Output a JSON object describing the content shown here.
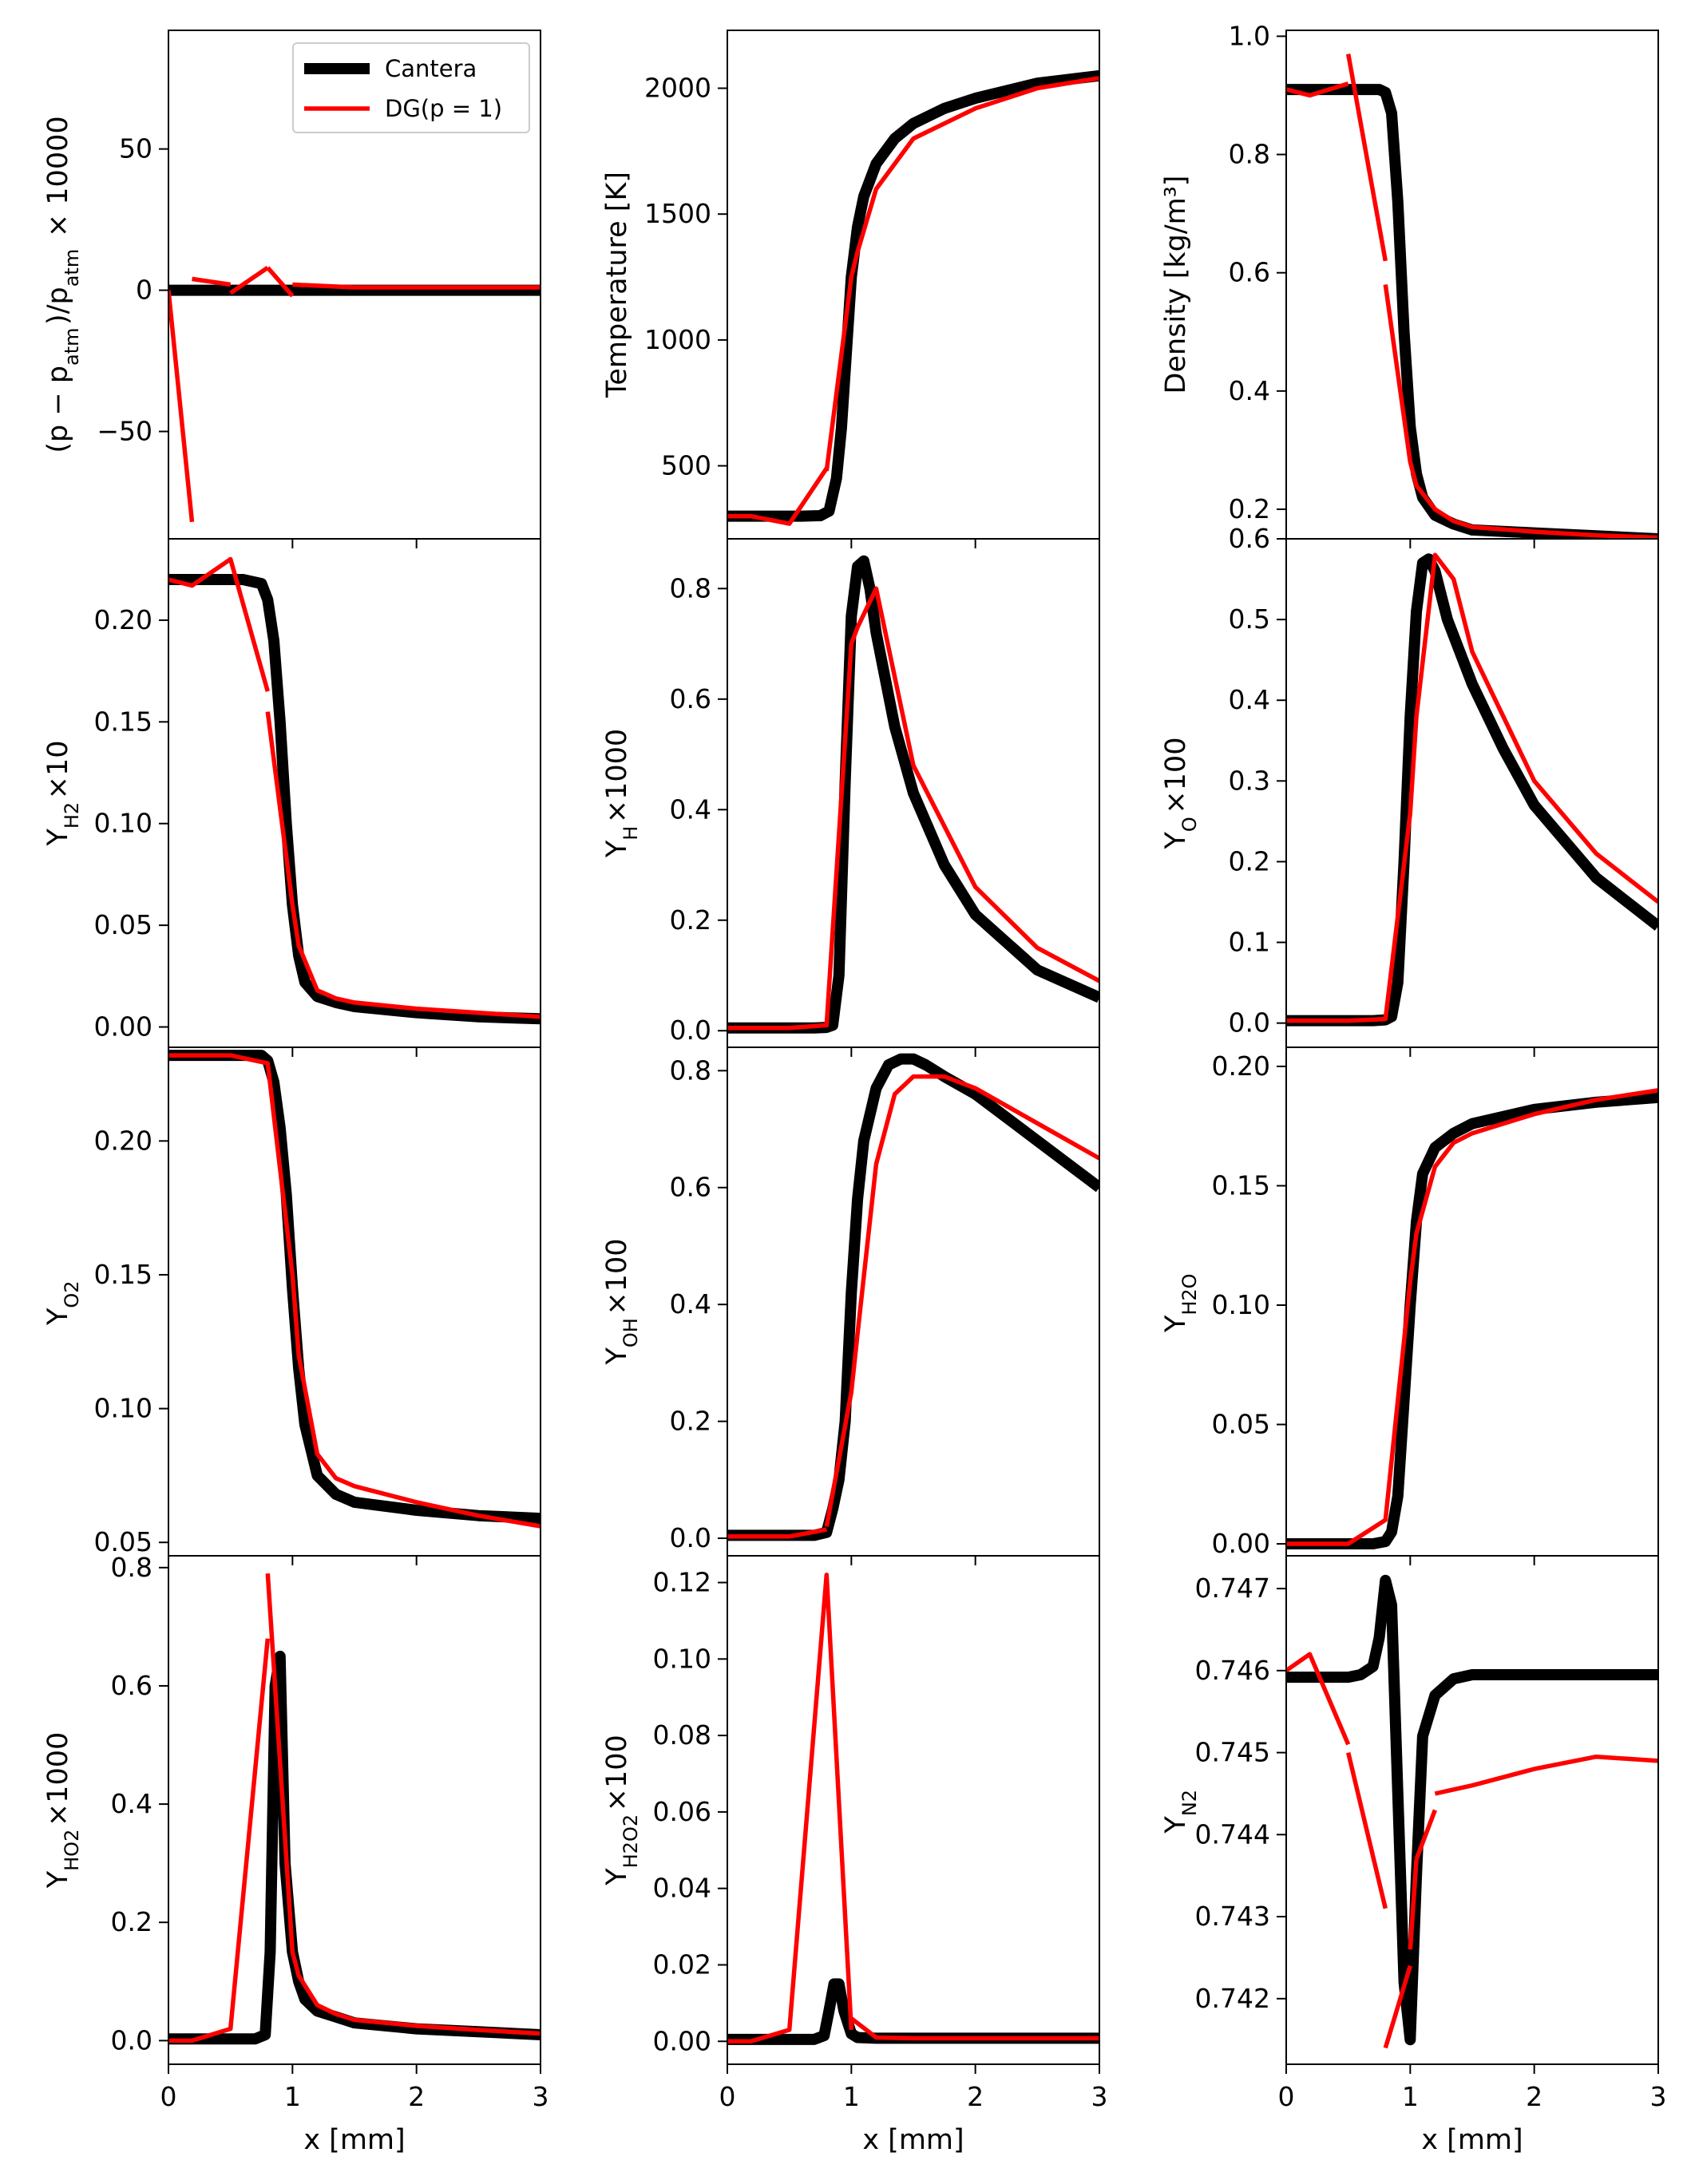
{
  "legend": {
    "cantera_label": "Cantera",
    "dg_label": "DG(p = 1)"
  },
  "colors": {
    "cantera": "#000000",
    "dg": "#ff0000"
  },
  "chart_data": [
    {
      "type": "line",
      "panel": "pressure",
      "ylabel": "(p − p_atm)/p_atm × 10000",
      "xlim": [
        0,
        3
      ],
      "ylim": [
        -88,
        92
      ],
      "yticks": [
        -50,
        0,
        50
      ],
      "xticks": [
        0,
        1,
        2,
        3
      ],
      "xlabel": "",
      "legend": "top-right",
      "series": [
        {
          "name": "Cantera",
          "x": [
            0,
            3
          ],
          "y": [
            0,
            0
          ]
        },
        {
          "name": "DG(p = 1)",
          "x": [
            0,
            0.19,
            null,
            0.19,
            0.5,
            null,
            0.5,
            0.8,
            null,
            0.8,
            1.0,
            null,
            1.0,
            1.5,
            3
          ],
          "y": [
            0,
            -82,
            null,
            4,
            2,
            null,
            -1,
            8,
            null,
            8,
            -2,
            null,
            2,
            1,
            1
          ]
        }
      ]
    },
    {
      "type": "line",
      "panel": "temperature",
      "ylabel": "Temperature [K]",
      "xlim": [
        0,
        3
      ],
      "ylim": [
        210,
        2230
      ],
      "yticks": [
        500,
        1000,
        1500,
        2000
      ],
      "xticks": [
        0,
        1,
        2,
        3
      ],
      "xlabel": "",
      "series": [
        {
          "name": "Cantera",
          "x": [
            0,
            0.6,
            0.75,
            0.82,
            0.88,
            0.92,
            0.96,
            1.0,
            1.05,
            1.1,
            1.2,
            1.35,
            1.5,
            1.75,
            2.0,
            2.5,
            3.0
          ],
          "y": [
            300,
            300,
            302,
            320,
            450,
            650,
            950,
            1250,
            1450,
            1570,
            1700,
            1800,
            1860,
            1920,
            1960,
            2020,
            2050
          ]
        },
        {
          "name": "DG(p = 1)",
          "x": [
            0,
            0.19,
            0.5,
            0.8,
            null,
            0.8,
            1.0,
            1.05,
            1.2,
            1.5,
            2.0,
            2.5,
            3.0
          ],
          "y": [
            300,
            300,
            270,
            490,
            null,
            480,
            1250,
            1350,
            1600,
            1800,
            1920,
            2000,
            2040
          ]
        }
      ]
    },
    {
      "type": "line",
      "panel": "density",
      "ylabel": "Density [kg/m³]",
      "xlim": [
        0,
        3
      ],
      "ylim": [
        0.15,
        1.01
      ],
      "yticks": [
        0.2,
        0.4,
        0.6,
        0.8,
        1.0
      ],
      "xticks": [
        0,
        1,
        2,
        3
      ],
      "xlabel": "",
      "series": [
        {
          "name": "Cantera",
          "x": [
            0,
            0.6,
            0.75,
            0.8,
            0.85,
            0.9,
            0.95,
            1.0,
            1.05,
            1.1,
            1.2,
            1.35,
            1.5,
            2.0,
            2.5,
            3.0
          ],
          "y": [
            0.91,
            0.91,
            0.91,
            0.905,
            0.87,
            0.72,
            0.5,
            0.34,
            0.26,
            0.22,
            0.19,
            0.175,
            0.165,
            0.16,
            0.155,
            0.15
          ]
        },
        {
          "name": "DG(p = 1)",
          "x": [
            0,
            0.19,
            0.5,
            null,
            0.5,
            0.8,
            null,
            0.8,
            1.0,
            1.05,
            1.2,
            1.35,
            1.5,
            2.0,
            2.5,
            3.0
          ],
          "y": [
            0.91,
            0.9,
            0.92,
            null,
            0.97,
            0.62,
            null,
            0.58,
            0.28,
            0.24,
            0.2,
            0.18,
            0.17,
            0.162,
            0.156,
            0.152
          ]
        }
      ]
    },
    {
      "type": "line",
      "panel": "yh2",
      "ylabel": "Y_H2×10",
      "xlim": [
        0,
        3
      ],
      "ylim": [
        -0.01,
        0.24
      ],
      "yticks": [
        0.0,
        0.05,
        0.1,
        0.15,
        0.2
      ],
      "xticks": [
        0,
        1,
        2,
        3
      ],
      "xlabel": "",
      "series": [
        {
          "name": "Cantera",
          "x": [
            0,
            0.6,
            0.75,
            0.8,
            0.85,
            0.9,
            0.95,
            1.0,
            1.05,
            1.1,
            1.2,
            1.35,
            1.5,
            2.0,
            2.5,
            3.0
          ],
          "y": [
            0.22,
            0.22,
            0.218,
            0.21,
            0.19,
            0.15,
            0.1,
            0.06,
            0.035,
            0.022,
            0.015,
            0.012,
            0.01,
            0.007,
            0.005,
            0.004
          ]
        },
        {
          "name": "DG(p = 1)",
          "x": [
            0,
            0.19,
            0.5,
            0.8,
            null,
            0.8,
            1.0,
            1.05,
            1.2,
            1.35,
            1.5,
            2.0,
            2.5,
            3.0
          ],
          "y": [
            0.22,
            0.217,
            0.23,
            0.165,
            null,
            0.155,
            0.06,
            0.04,
            0.018,
            0.014,
            0.012,
            0.009,
            0.007,
            0.005
          ]
        }
      ]
    },
    {
      "type": "line",
      "panel": "yh",
      "ylabel": "Y_H×1000",
      "xlim": [
        0,
        3
      ],
      "ylim": [
        -0.03,
        0.89
      ],
      "yticks": [
        0.0,
        0.2,
        0.4,
        0.6,
        0.8
      ],
      "xticks": [
        0,
        1,
        2,
        3
      ],
      "xlabel": "",
      "series": [
        {
          "name": "Cantera",
          "x": [
            0,
            0.7,
            0.8,
            0.85,
            0.9,
            0.95,
            1.0,
            1.05,
            1.1,
            1.15,
            1.2,
            1.35,
            1.5,
            1.75,
            2.0,
            2.5,
            3.0
          ],
          "y": [
            0.005,
            0.005,
            0.006,
            0.01,
            0.1,
            0.45,
            0.75,
            0.84,
            0.85,
            0.8,
            0.72,
            0.55,
            0.43,
            0.3,
            0.21,
            0.11,
            0.06
          ]
        },
        {
          "name": "DG(p = 1)",
          "x": [
            0,
            0.5,
            0.8,
            1.0,
            1.05,
            1.2,
            1.5,
            2.0,
            2.5,
            3.0
          ],
          "y": [
            0.005,
            0.005,
            0.01,
            0.7,
            0.73,
            0.8,
            0.48,
            0.26,
            0.15,
            0.09
          ]
        }
      ]
    },
    {
      "type": "line",
      "panel": "yo",
      "ylabel": "Y_O×100",
      "xlim": [
        0,
        3
      ],
      "ylim": [
        -0.03,
        0.6
      ],
      "yticks": [
        0.0,
        0.1,
        0.2,
        0.3,
        0.4,
        0.5,
        0.6
      ],
      "xticks": [
        0,
        1,
        2,
        3
      ],
      "xlabel": "",
      "series": [
        {
          "name": "Cantera",
          "x": [
            0,
            0.7,
            0.8,
            0.85,
            0.9,
            0.95,
            1.0,
            1.05,
            1.1,
            1.15,
            1.2,
            1.3,
            1.5,
            1.75,
            2.0,
            2.5,
            3.0
          ],
          "y": [
            0.003,
            0.003,
            0.004,
            0.008,
            0.05,
            0.2,
            0.38,
            0.51,
            0.57,
            0.575,
            0.56,
            0.5,
            0.42,
            0.34,
            0.27,
            0.18,
            0.12
          ]
        },
        {
          "name": "DG(p = 1)",
          "x": [
            0,
            0.5,
            0.8,
            1.0,
            1.05,
            1.2,
            1.35,
            1.5,
            2.0,
            2.5,
            3.0
          ],
          "y": [
            0.003,
            0.003,
            0.005,
            0.26,
            0.38,
            0.58,
            0.55,
            0.46,
            0.3,
            0.21,
            0.15
          ]
        }
      ]
    },
    {
      "type": "line",
      "panel": "yo2",
      "ylabel": "Y_O2",
      "xlim": [
        0,
        3
      ],
      "ylim": [
        0.045,
        0.235
      ],
      "yticks": [
        0.05,
        0.1,
        0.15,
        0.2
      ],
      "xticks": [
        0,
        1,
        2,
        3
      ],
      "xlabel": "",
      "series": [
        {
          "name": "Cantera",
          "x": [
            0,
            0.6,
            0.75,
            0.8,
            0.85,
            0.9,
            0.95,
            1.0,
            1.05,
            1.1,
            1.2,
            1.35,
            1.5,
            2.0,
            2.5,
            3.0
          ],
          "y": [
            0.232,
            0.232,
            0.232,
            0.23,
            0.222,
            0.205,
            0.18,
            0.145,
            0.115,
            0.094,
            0.075,
            0.068,
            0.065,
            0.062,
            0.06,
            0.059
          ]
        },
        {
          "name": "DG(p = 1)",
          "x": [
            0,
            0.19,
            0.5,
            0.8,
            1.0,
            1.05,
            1.2,
            1.35,
            1.5,
            2.0,
            2.5,
            3.0
          ],
          "y": [
            0.232,
            0.232,
            0.232,
            0.229,
            0.15,
            0.12,
            0.083,
            0.074,
            0.071,
            0.065,
            0.06,
            0.056
          ]
        }
      ]
    },
    {
      "type": "line",
      "panel": "yoh",
      "ylabel": "Y_OH×100",
      "xlim": [
        0,
        3
      ],
      "ylim": [
        -0.03,
        0.84
      ],
      "yticks": [
        0.0,
        0.2,
        0.4,
        0.6,
        0.8
      ],
      "xticks": [
        0,
        1,
        2,
        3
      ],
      "xlabel": "",
      "series": [
        {
          "name": "Cantera",
          "x": [
            0,
            0.7,
            0.8,
            0.85,
            0.9,
            0.95,
            1.0,
            1.05,
            1.1,
            1.2,
            1.3,
            1.4,
            1.5,
            1.6,
            1.75,
            2.0,
            2.5,
            3.0
          ],
          "y": [
            0.005,
            0.005,
            0.01,
            0.05,
            0.1,
            0.2,
            0.42,
            0.58,
            0.68,
            0.77,
            0.81,
            0.82,
            0.82,
            0.81,
            0.79,
            0.76,
            0.68,
            0.6
          ]
        },
        {
          "name": "DG(p = 1)",
          "x": [
            0,
            0.5,
            0.8,
            null,
            0.8,
            1.0,
            1.05,
            1.2,
            1.35,
            1.5,
            1.75,
            2.0,
            2.5,
            3.0
          ],
          "y": [
            0.003,
            0.003,
            0.015,
            null,
            0.02,
            0.25,
            0.35,
            0.64,
            0.76,
            0.79,
            0.79,
            0.77,
            0.71,
            0.65
          ]
        }
      ]
    },
    {
      "type": "line",
      "panel": "yh2o",
      "ylabel": "Y_H2O",
      "xlim": [
        0,
        3
      ],
      "ylim": [
        -0.005,
        0.208
      ],
      "yticks": [
        0.0,
        0.05,
        0.1,
        0.15,
        0.2
      ],
      "xticks": [
        0,
        1,
        2,
        3
      ],
      "xlabel": "",
      "series": [
        {
          "name": "Cantera",
          "x": [
            0,
            0.7,
            0.8,
            0.85,
            0.9,
            0.95,
            1.0,
            1.05,
            1.1,
            1.2,
            1.35,
            1.5,
            2.0,
            2.5,
            3.0
          ],
          "y": [
            0,
            0,
            0.001,
            0.005,
            0.02,
            0.06,
            0.1,
            0.135,
            0.155,
            0.166,
            0.172,
            0.176,
            0.182,
            0.185,
            0.187
          ]
        },
        {
          "name": "DG(p = 1)",
          "x": [
            0,
            0.5,
            0.8,
            1.0,
            1.05,
            1.2,
            1.35,
            1.5,
            2.0,
            2.5,
            3.0
          ],
          "y": [
            0,
            0,
            0.01,
            0.11,
            0.13,
            0.158,
            0.168,
            0.172,
            0.18,
            0.186,
            0.19
          ]
        }
      ]
    },
    {
      "type": "line",
      "panel": "yho2",
      "ylabel": "Y_HO2×1000",
      "xlim": [
        0,
        3
      ],
      "ylim": [
        -0.04,
        0.82
      ],
      "yticks": [
        0.0,
        0.2,
        0.4,
        0.6,
        0.8
      ],
      "xticks": [
        0,
        1,
        2,
        3
      ],
      "xlabel": "x [mm]",
      "series": [
        {
          "name": "Cantera",
          "x": [
            0,
            0.7,
            0.78,
            0.82,
            0.86,
            0.9,
            0.94,
            1.0,
            1.05,
            1.1,
            1.2,
            1.35,
            1.5,
            2.0,
            2.5,
            3.0
          ],
          "y": [
            0.003,
            0.003,
            0.01,
            0.15,
            0.6,
            0.65,
            0.3,
            0.15,
            0.1,
            0.07,
            0.05,
            0.04,
            0.03,
            0.02,
            0.015,
            0.01
          ]
        },
        {
          "name": "DG(p = 1)",
          "x": [
            0,
            0.19,
            0.5,
            0.8,
            null,
            0.8,
            1.0,
            1.05,
            1.2,
            1.35,
            1.5,
            2.0,
            2.5,
            3.0
          ],
          "y": [
            0,
            0,
            0.02,
            0.68,
            null,
            0.79,
            0.15,
            0.11,
            0.06,
            0.045,
            0.035,
            0.025,
            0.018,
            0.012
          ]
        }
      ]
    },
    {
      "type": "line",
      "panel": "yh2o2",
      "ylabel": "Y_H2O2×100",
      "xlim": [
        0,
        3
      ],
      "ylim": [
        -0.006,
        0.127
      ],
      "yticks": [
        0.0,
        0.02,
        0.04,
        0.06,
        0.08,
        0.1,
        0.12
      ],
      "xticks": [
        0,
        1,
        2,
        3
      ],
      "xlabel": "x [mm]",
      "series": [
        {
          "name": "Cantera",
          "x": [
            0,
            0.7,
            0.78,
            0.82,
            0.86,
            0.9,
            0.94,
            1.0,
            1.05,
            1.2,
            1.5,
            2.0,
            3.0
          ],
          "y": [
            0.0005,
            0.0005,
            0.0015,
            0.008,
            0.015,
            0.015,
            0.008,
            0.002,
            0.001,
            0.0008,
            0.0008,
            0.0008,
            0.0008
          ]
        },
        {
          "name": "DG(p = 1)",
          "x": [
            0,
            0.19,
            0.5,
            0.8,
            1.0,
            null,
            1.0,
            1.2,
            1.5,
            2.0,
            3.0
          ],
          "y": [
            0,
            0,
            0.003,
            0.122,
            0.003,
            null,
            0.006,
            0.001,
            0.0008,
            0.0008,
            0.0008
          ]
        }
      ]
    },
    {
      "type": "line",
      "panel": "yn2",
      "ylabel": "Y_N2",
      "xlim": [
        0,
        3
      ],
      "ylim": [
        0.7412,
        0.7474
      ],
      "yticks": [
        0.742,
        0.743,
        0.744,
        0.745,
        0.746,
        0.747
      ],
      "xticks": [
        0,
        1,
        2,
        3
      ],
      "xlabel": "x [mm]",
      "series": [
        {
          "name": "Cantera",
          "x": [
            0,
            0.5,
            0.6,
            0.7,
            0.75,
            0.8,
            0.85,
            0.9,
            0.95,
            1.0,
            1.05,
            1.1,
            1.2,
            1.35,
            1.5,
            2.0,
            3.0
          ],
          "y": [
            0.74592,
            0.74592,
            0.74595,
            0.74605,
            0.7464,
            0.7471,
            0.7468,
            0.7445,
            0.7422,
            0.7415,
            0.7435,
            0.7452,
            0.7457,
            0.7459,
            0.74595,
            0.74595,
            0.74595
          ]
        },
        {
          "name": "DG(p = 1)",
          "x": [
            0,
            0.19,
            0.5,
            null,
            0.5,
            0.8,
            null,
            0.8,
            1.0,
            null,
            1.0,
            1.05,
            null,
            1.05,
            1.2,
            null,
            1.2,
            1.35,
            1.5,
            2.0,
            2.5,
            3.0
          ],
          "y": [
            0.746,
            0.7462,
            0.7451,
            null,
            0.745,
            0.7431,
            null,
            0.7414,
            0.7424,
            null,
            0.7426,
            0.7437,
            null,
            0.7437,
            0.7443,
            null,
            0.7445,
            0.74455,
            0.7446,
            0.7448,
            0.74495,
            0.7449
          ]
        }
      ]
    }
  ]
}
